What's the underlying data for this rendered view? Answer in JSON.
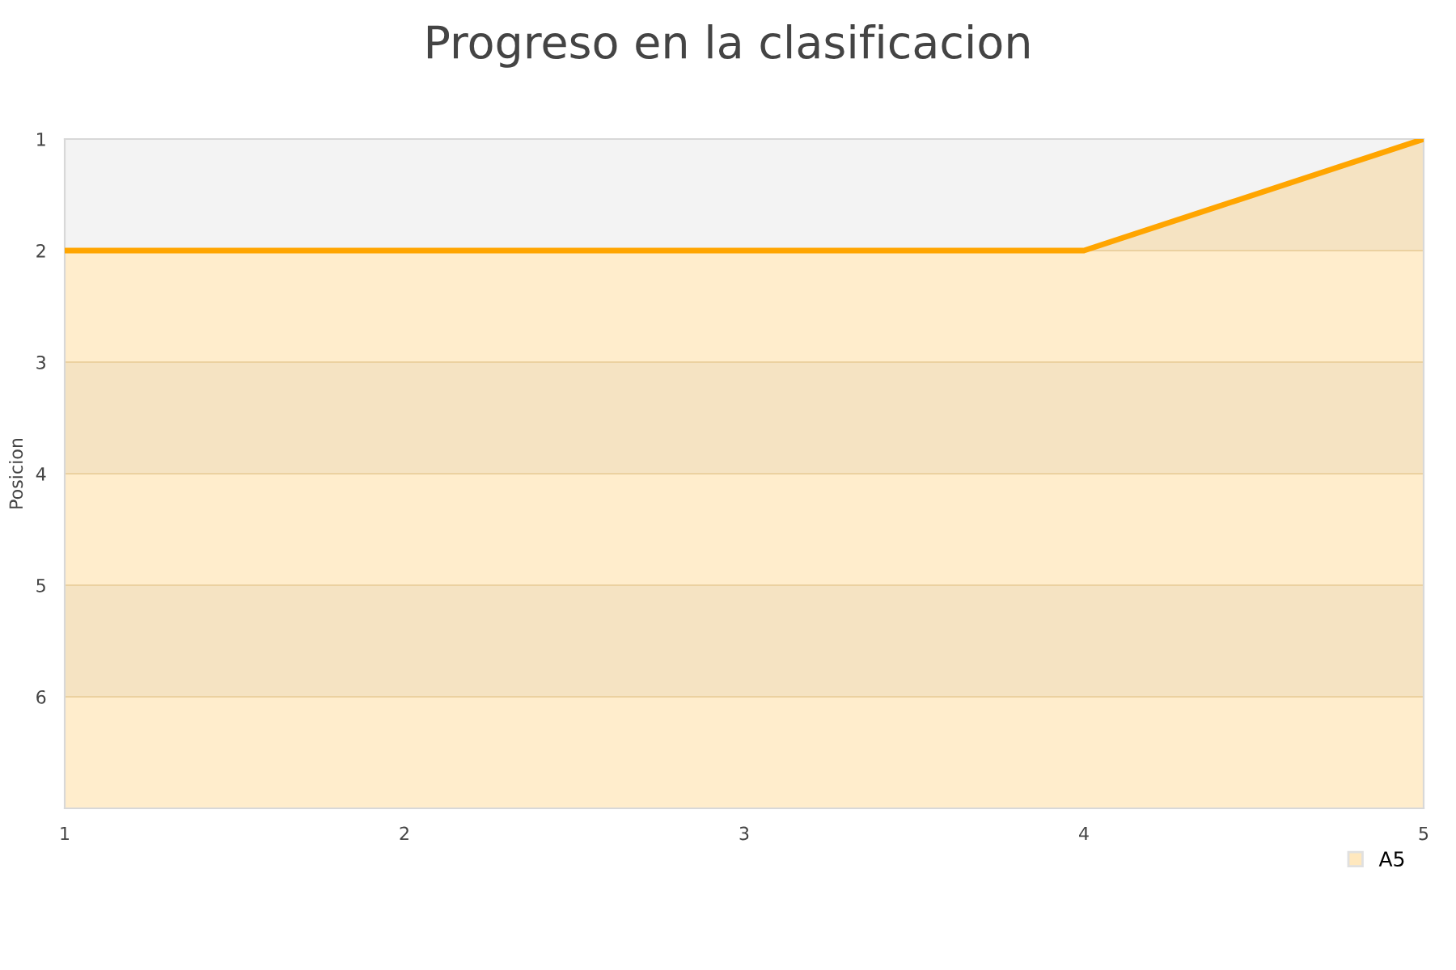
{
  "chart_data": {
    "type": "area",
    "title": "Progreso en la clasificacion",
    "ylabel": "Posicion",
    "x": [
      1,
      2,
      3,
      4,
      5
    ],
    "series": [
      {
        "name": "A5",
        "color": "#ffa500",
        "values": [
          2,
          2,
          2,
          2,
          1
        ]
      }
    ],
    "xlim": [
      1,
      5
    ],
    "xticks": [
      1,
      2,
      3,
      4,
      5
    ],
    "ylim": [
      7,
      1
    ],
    "yticks": [
      1,
      2,
      3,
      4,
      5,
      6
    ],
    "grid": "y",
    "legend": "bottom right"
  }
}
